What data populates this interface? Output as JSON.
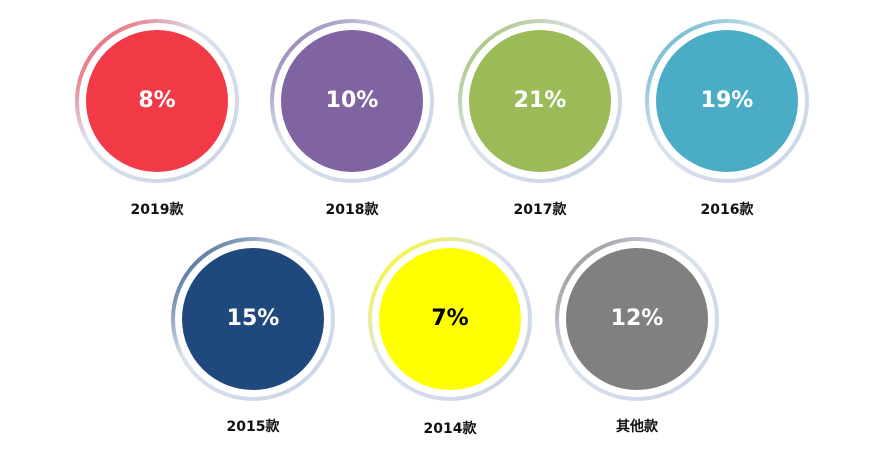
{
  "chart_data": {
    "type": "circle-stats",
    "categories": [
      "2019款",
      "2018款",
      "2017款",
      "2016款",
      "2015款",
      "2014款",
      "其他款"
    ],
    "values": [
      8,
      10,
      21,
      19,
      15,
      7,
      12
    ],
    "value_labels": [
      "8%",
      "10%",
      "21%",
      "19%",
      "15%",
      "7%",
      "12%"
    ],
    "colors": [
      "#f23a47",
      "#8064a2",
      "#9bbb59",
      "#4bacc6",
      "#1f497d",
      "#ffff00",
      "#808080"
    ]
  }
}
